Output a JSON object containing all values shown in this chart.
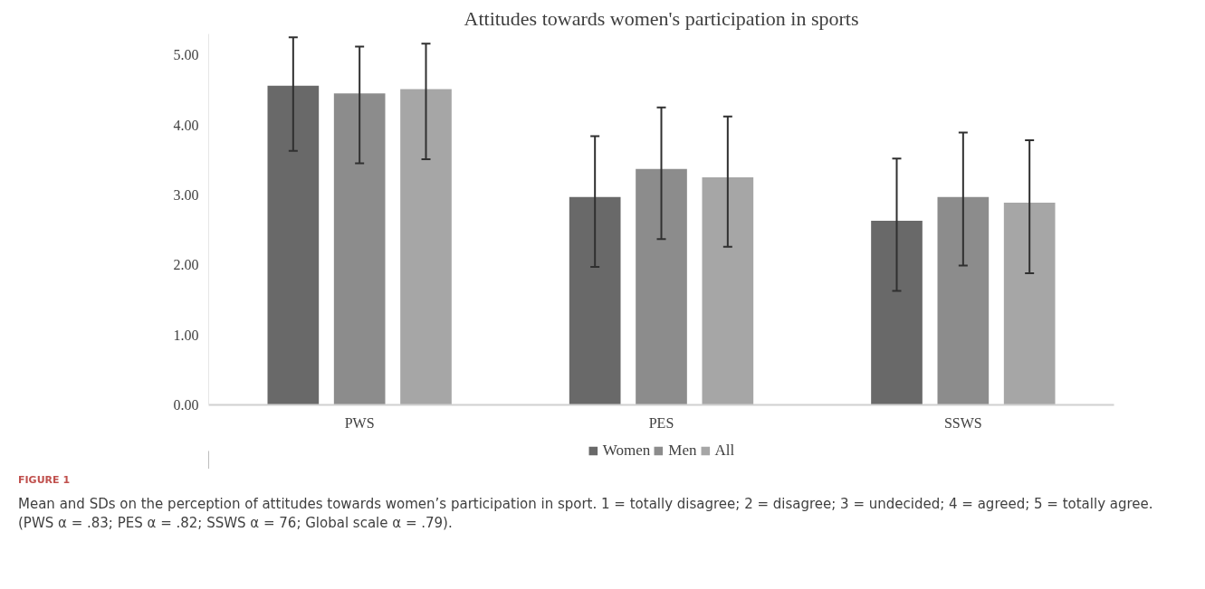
{
  "chart_data": {
    "type": "bar",
    "title": "Attitudes towards women's participation in sports",
    "categories": [
      "PWS",
      "PES",
      "SSWS"
    ],
    "series": [
      {
        "name": "Women",
        "color": "#696969",
        "values": [
          4.56,
          2.97,
          2.63
        ],
        "errors": [
          [
            3.63,
            5.25
          ],
          [
            1.97,
            3.84
          ],
          [
            1.63,
            3.52
          ]
        ]
      },
      {
        "name": "Men",
        "color": "#8c8c8c",
        "values": [
          4.45,
          3.37,
          2.97
        ],
        "errors": [
          [
            3.45,
            5.12
          ],
          [
            2.37,
            4.25
          ],
          [
            1.99,
            3.89
          ]
        ]
      },
      {
        "name": "All",
        "color": "#a6a6a6",
        "values": [
          4.51,
          3.25,
          2.89
        ],
        "errors": [
          [
            3.51,
            5.16
          ],
          [
            2.26,
            4.12
          ],
          [
            1.88,
            3.78
          ]
        ]
      }
    ],
    "ylim": [
      0,
      5.3
    ],
    "yticks": [
      {
        "value": 0,
        "label": "0.00"
      },
      {
        "value": 1,
        "label": "1.00"
      },
      {
        "value": 2,
        "label": "2.00"
      },
      {
        "value": 3,
        "label": "3.00"
      },
      {
        "value": 4,
        "label": "4.00"
      },
      {
        "value": 5,
        "label": "5.00"
      }
    ],
    "grid": false,
    "legend": "bottom",
    "annotations": [
      "FIGURE 1",
      "Mean and SDs on the perception of attitudes towards women’s participation in sport. 1 = totally disagree; 2 = disagree; 3 = undecided; 4 = agreed; 5 = totally agree. (PWS α = .83; PES α = .82; SSWS α = 76; Global scale α = .79)."
    ]
  }
}
